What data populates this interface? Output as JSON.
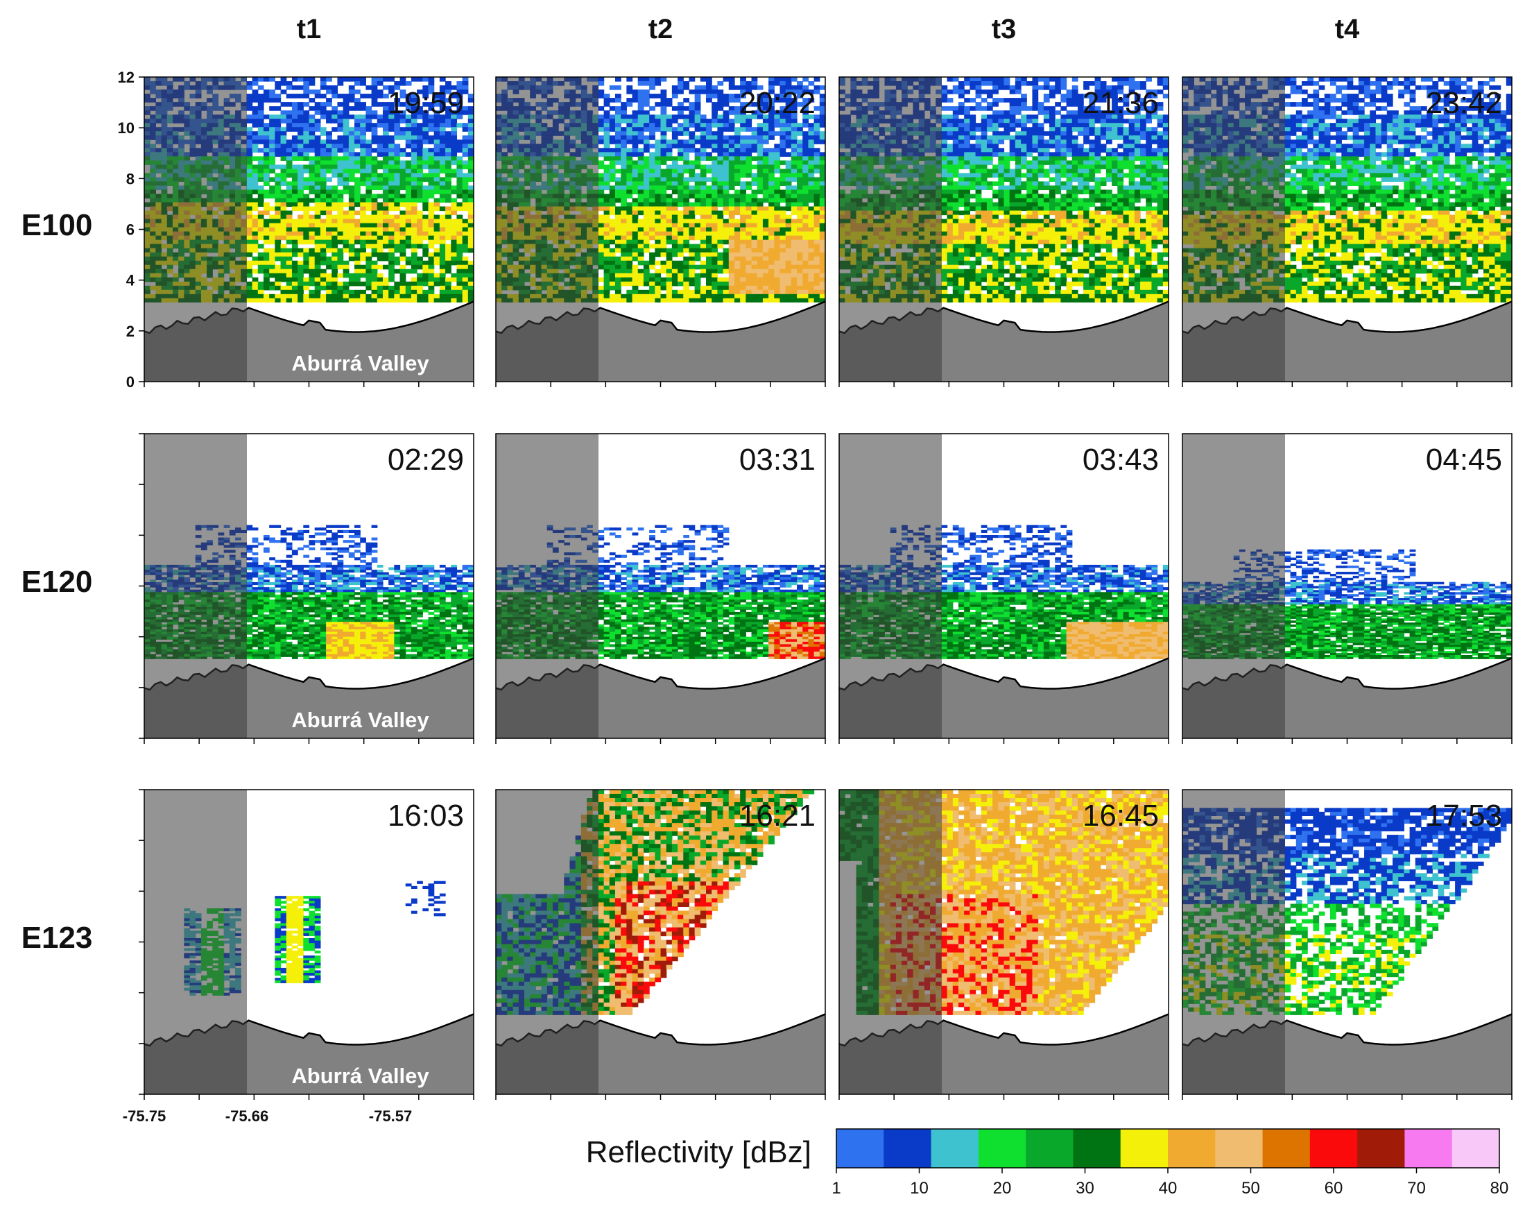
{
  "chart_data": {
    "type": "heatmap",
    "description_type": "radar reflectivity vertical cross-section panels",
    "columns": [
      "t1",
      "t2",
      "t3",
      "t4"
    ],
    "rows": [
      "E100",
      "E120",
      "E123"
    ],
    "panels": [
      [
        {
          "time": "19:59",
          "valley_label": "Aburrá Valley"
        },
        {
          "time": "20:22"
        },
        {
          "time": "21:36"
        },
        {
          "time": "23:42"
        }
      ],
      [
        {
          "time": "02:29",
          "valley_label": "Aburrá Valley"
        },
        {
          "time": "03:31"
        },
        {
          "time": "03:43"
        },
        {
          "time": "04:45"
        }
      ],
      [
        {
          "time": "16:03",
          "valley_label": "Aburrá Valley"
        },
        {
          "time": "16:21"
        },
        {
          "time": "16:45"
        },
        {
          "time": "17:53"
        }
      ]
    ],
    "yticks": [
      "12",
      "10",
      "8",
      "6",
      "4",
      "2",
      "0"
    ],
    "ylim": [
      0,
      12
    ],
    "xticks": [
      "-75.75",
      "-75.66",
      "-75.57"
    ],
    "colorbar": {
      "title": "Reflectivity  [dBz]",
      "ticks": [
        "1",
        "10",
        "20",
        "30",
        "40",
        "50",
        "60",
        "70",
        "80"
      ],
      "bins": [
        {
          "from": 1,
          "to": 5,
          "color": "#2e72f0"
        },
        {
          "from": 5,
          "to": 10,
          "color": "#0a3ac8"
        },
        {
          "from": 10,
          "to": 15,
          "color": "#3fc2cf"
        },
        {
          "from": 15,
          "to": 20,
          "color": "#0fe030"
        },
        {
          "from": 20,
          "to": 25,
          "color": "#0aa82a"
        },
        {
          "from": 25,
          "to": 30,
          "color": "#007412"
        },
        {
          "from": 30,
          "to": 35,
          "color": "#f4f00a"
        },
        {
          "from": 35,
          "to": 40,
          "color": "#f0aa30"
        },
        {
          "from": 40,
          "to": 45,
          "color": "#f0bc70"
        },
        {
          "from": 45,
          "to": 50,
          "color": "#de7400"
        },
        {
          "from": 50,
          "to": 55,
          "color": "#fa0a0a"
        },
        {
          "from": 55,
          "to": 60,
          "color": "#a01c08"
        },
        {
          "from": 60,
          "to": 65,
          "color": "#f87af0"
        },
        {
          "from": 65,
          "to": 70,
          "color": "#f8c8f8"
        },
        {
          "from": 70,
          "to": 80,
          "color": "#ffffff"
        }
      ]
    }
  }
}
